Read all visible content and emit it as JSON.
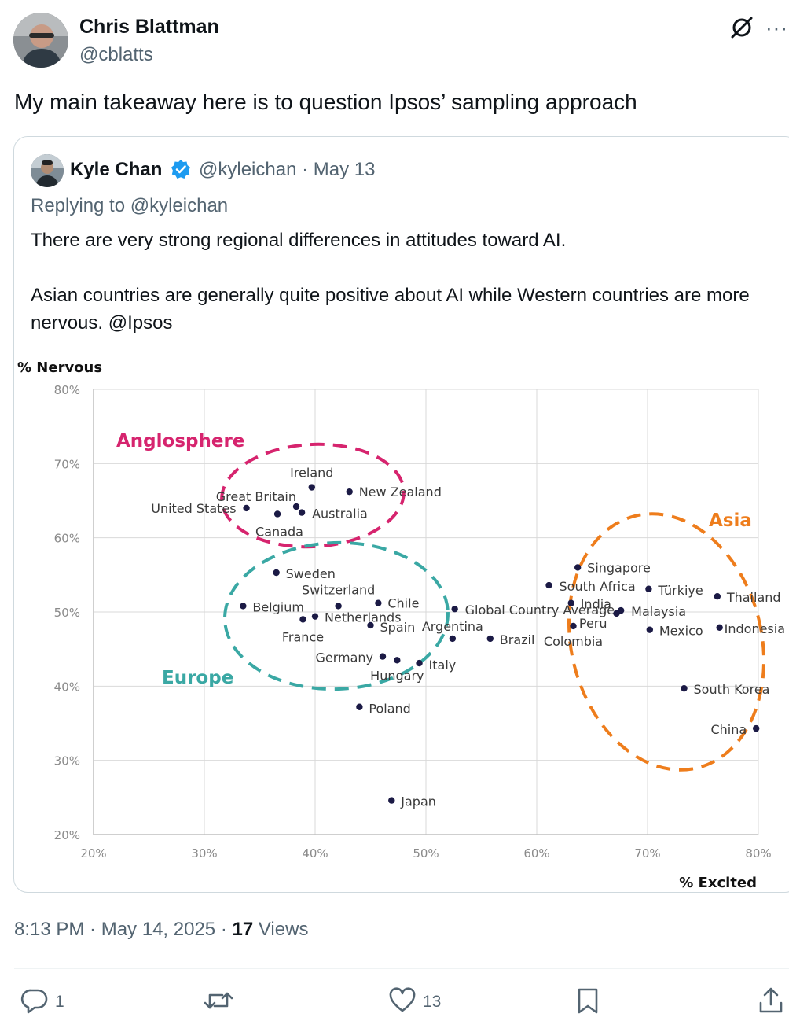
{
  "post": {
    "author_name": "Chris Blattman",
    "author_handle": "@cblatts",
    "text": "My main takeaway here is to question Ipsos’ sampling approach",
    "time": "8:13 PM",
    "date": "May 14, 2025",
    "separator": " · ",
    "views_count": "17",
    "views_label": " Views"
  },
  "quote": {
    "author_name": "Kyle Chan",
    "author_handle": "@kyleichan",
    "date": "May 13",
    "meta_sep": " · ",
    "replying_to": "Replying to @kyleichan",
    "paragraph1": "There are very strong regional differences in attitudes toward AI.",
    "paragraph2": "Asian countries are generally quite positive about AI while Western countries are more nervous. @Ipsos"
  },
  "actions": {
    "replies": "1",
    "reposts": "",
    "likes": "13"
  },
  "icons": {
    "grok": "grok-icon",
    "more": "more-icon",
    "verified": "verified-icon",
    "reply": "reply-icon",
    "repost": "repost-icon",
    "like": "heart-icon",
    "bookmark": "bookmark-icon",
    "share": "share-icon"
  },
  "colors": {
    "anglosphere": "#d6246e",
    "europe": "#3aa8a4",
    "asia": "#ee7d1c",
    "point": "#1b1a45",
    "verified": "#1d9bf0"
  },
  "chart_data": {
    "type": "scatter",
    "ylabel": "% Nervous",
    "xlabel": "% Excited",
    "xlim": [
      20,
      80
    ],
    "ylim": [
      20,
      80
    ],
    "xticks": [
      "20%",
      "30%",
      "40%",
      "50%",
      "60%",
      "70%",
      "80%"
    ],
    "yticks": [
      "20%",
      "30%",
      "40%",
      "50%",
      "60%",
      "70%",
      "80%"
    ],
    "grid": true,
    "groups": [
      {
        "name": "Anglosphere",
        "color": "#d6246e"
      },
      {
        "name": "Europe",
        "color": "#3aa8a4"
      },
      {
        "name": "Asia",
        "color": "#ee7d1c"
      }
    ],
    "points": [
      {
        "label": "Ireland",
        "x": 39.7,
        "y": 66.8
      },
      {
        "label": "New Zealand",
        "x": 43.1,
        "y": 66.2
      },
      {
        "label": "Great Britain",
        "x": 38.3,
        "y": 64.2
      },
      {
        "label": "United States",
        "x": 33.8,
        "y": 64.0
      },
      {
        "label": "Australia",
        "x": 38.8,
        "y": 63.4
      },
      {
        "label": "Canada",
        "x": 36.6,
        "y": 63.2
      },
      {
        "label": "Sweden",
        "x": 36.5,
        "y": 55.3
      },
      {
        "label": "Switzerland",
        "x": 42.1,
        "y": 50.8
      },
      {
        "label": "Belgium",
        "x": 33.5,
        "y": 50.8
      },
      {
        "label": "Chile",
        "x": 45.7,
        "y": 51.2
      },
      {
        "label": "Netherlands",
        "x": 40.0,
        "y": 49.4
      },
      {
        "label": "France",
        "x": 38.9,
        "y": 49.0
      },
      {
        "label": "Spain",
        "x": 45.0,
        "y": 48.2
      },
      {
        "label": "Germany",
        "x": 46.1,
        "y": 44.0
      },
      {
        "label": "Hungary",
        "x": 47.4,
        "y": 43.5
      },
      {
        "label": "Italy",
        "x": 49.4,
        "y": 43.1
      },
      {
        "label": "Argentina",
        "x": 52.4,
        "y": 46.4
      },
      {
        "label": "Poland",
        "x": 44.0,
        "y": 37.2
      },
      {
        "label": "Japan",
        "x": 46.9,
        "y": 24.6
      },
      {
        "label": "Global Country Average",
        "x": 52.6,
        "y": 50.4
      },
      {
        "label": "Brazil",
        "x": 55.8,
        "y": 46.4
      },
      {
        "label": "Singapore",
        "x": 63.7,
        "y": 56.0
      },
      {
        "label": "South Africa",
        "x": 61.1,
        "y": 53.6
      },
      {
        "label": "India",
        "x": 63.1,
        "y": 51.2
      },
      {
        "label": "Türkiye",
        "x": 70.1,
        "y": 53.1
      },
      {
        "label": "Thailand",
        "x": 76.3,
        "y": 52.1
      },
      {
        "label": "Malaysia",
        "x": 67.6,
        "y": 50.2
      },
      {
        "label": "Colombia",
        "x": 63.3,
        "y": 48.1
      },
      {
        "label": "Peru",
        "x": 67.2,
        "y": 49.8
      },
      {
        "label": "Mexico",
        "x": 70.2,
        "y": 47.6
      },
      {
        "label": "Indonesia",
        "x": 76.5,
        "y": 47.9
      },
      {
        "label": "South Korea",
        "x": 73.3,
        "y": 39.7
      },
      {
        "label": "China",
        "x": 79.8,
        "y": 34.3
      }
    ]
  }
}
